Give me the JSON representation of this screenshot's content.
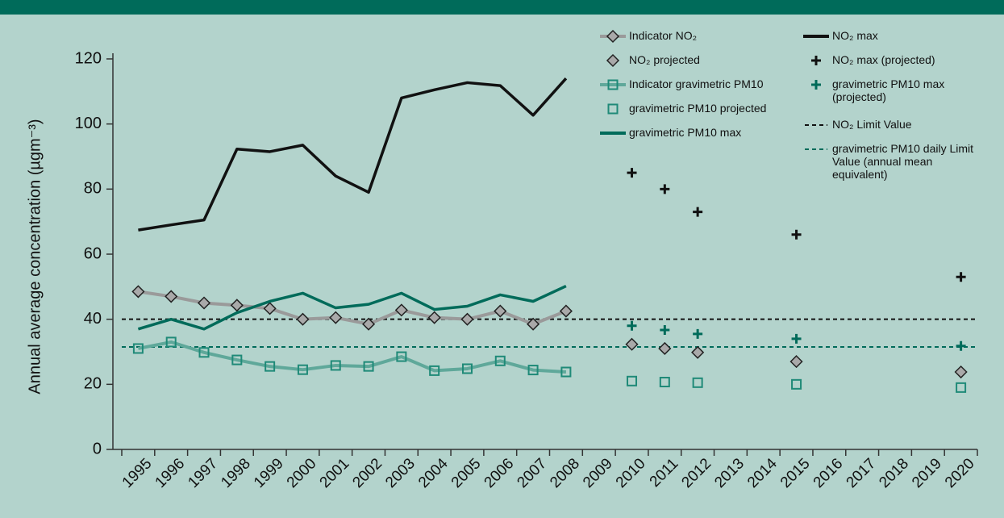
{
  "chart_data": {
    "type": "line",
    "ylabel": "Annual average concentration (µgm⁻³)",
    "categories": [
      "1995",
      "1996",
      "1997",
      "1998",
      "1999",
      "2000",
      "2001",
      "2002",
      "2003",
      "2004",
      "2005",
      "2006",
      "2007",
      "2008",
      "2009",
      "2010",
      "2011",
      "2012",
      "2013",
      "2014",
      "2015",
      "2016",
      "2017",
      "2018",
      "2019",
      "2020"
    ],
    "ylim": [
      0,
      120
    ],
    "yticks": [
      0,
      20,
      40,
      60,
      80,
      100,
      120
    ],
    "series": [
      {
        "name": "Indicator NO₂",
        "color": "#9a9a9a",
        "marker": "diamond",
        "line": true,
        "values": [
          48.5,
          47,
          45,
          44.3,
          43.3,
          40,
          40.5,
          38.5,
          42.8,
          40.5,
          40,
          42.5,
          38.5,
          42.5,
          null,
          null,
          null,
          null,
          null,
          null,
          null,
          null,
          null,
          null,
          null,
          null
        ]
      },
      {
        "name": "NO₂ projected",
        "color": "#9a9a9a",
        "marker": "diamond",
        "line": false,
        "values": [
          null,
          null,
          null,
          null,
          null,
          null,
          null,
          null,
          null,
          null,
          null,
          null,
          null,
          null,
          null,
          32.3,
          31,
          29.8,
          null,
          null,
          27,
          null,
          null,
          null,
          null,
          23.8
        ]
      },
      {
        "name": "Indicator gravimetric PM10",
        "color": "#5fa89a",
        "marker": "square",
        "line": true,
        "values": [
          31,
          33,
          29.8,
          27.5,
          25.5,
          24.5,
          25.8,
          25.5,
          28.5,
          24.2,
          24.8,
          27.2,
          24.4,
          23.8,
          null,
          null,
          null,
          null,
          null,
          null,
          null,
          null,
          null,
          null,
          null,
          null
        ]
      },
      {
        "name": "gravimetric PM10 projected",
        "color": "#5fa89a",
        "marker": "square",
        "line": false,
        "values": [
          null,
          null,
          null,
          null,
          null,
          null,
          null,
          null,
          null,
          null,
          null,
          null,
          null,
          null,
          null,
          21,
          20.7,
          20.5,
          null,
          null,
          20,
          null,
          null,
          null,
          null,
          19
        ]
      },
      {
        "name": "gravimetric PM10 max",
        "color": "#006b5a",
        "marker": "none",
        "line": true,
        "values": [
          37,
          40,
          37,
          42,
          45.5,
          48,
          43.5,
          44.6,
          48,
          43,
          44,
          47.5,
          45.5,
          50.2,
          null,
          null,
          null,
          null,
          null,
          null,
          null,
          null,
          null,
          null,
          null,
          null
        ]
      },
      {
        "name": "NO₂ max",
        "color": "#111111",
        "marker": "none",
        "line": true,
        "values": [
          67.4,
          69,
          70.5,
          92.3,
          91.5,
          93.5,
          84,
          79,
          108,
          110.5,
          112.7,
          111.8,
          102.7,
          114,
          null,
          null,
          null,
          null,
          null,
          null,
          null,
          null,
          null,
          null,
          null,
          null
        ]
      },
      {
        "name": "NO₂ max (projected)",
        "color": "#111111",
        "marker": "plus",
        "line": false,
        "values": [
          null,
          null,
          null,
          null,
          null,
          null,
          null,
          null,
          null,
          null,
          null,
          null,
          null,
          null,
          null,
          85,
          80,
          73,
          null,
          null,
          66,
          null,
          null,
          null,
          null,
          53
        ]
      },
      {
        "name": "gravimetric PM10 max (projected)",
        "color": "#006b5a",
        "marker": "plus",
        "line": false,
        "values": [
          null,
          null,
          null,
          null,
          null,
          null,
          null,
          null,
          null,
          null,
          null,
          null,
          null,
          null,
          null,
          38,
          36.7,
          35.5,
          null,
          null,
          34,
          null,
          null,
          null,
          null,
          31.8
        ]
      }
    ],
    "limits": [
      {
        "name": "NO₂ Limit Value",
        "color": "#111111",
        "value": 40
      },
      {
        "name": "gravimetric PM10 daily Limit Value (annual mean equivalent)",
        "color": "#006b5a",
        "value": 31.5
      }
    ]
  }
}
